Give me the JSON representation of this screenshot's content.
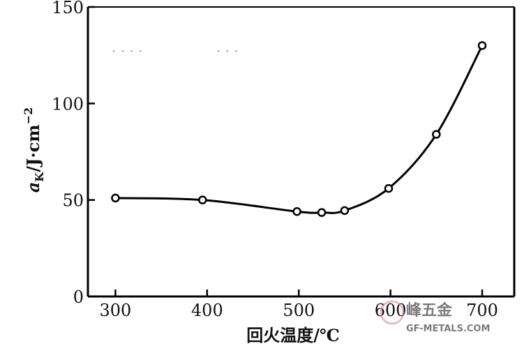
{
  "chart_data": {
    "type": "line",
    "title": "",
    "xlabel": "回火温度/℃",
    "ylabel": "aK/J·cm⁻²",
    "ylabel_parts": {
      "main": "a",
      "sub": "K",
      "unit": "/J·cm",
      "sup": "−2"
    },
    "xlim": [
      270,
      735
    ],
    "ylim": [
      0,
      150
    ],
    "xticks": [
      300,
      400,
      500,
      600,
      700
    ],
    "yticks": [
      0,
      50,
      100,
      150
    ],
    "grid": false,
    "series": [
      {
        "x": [
          300,
          395,
          498,
          525,
          550,
          598,
          650,
          700
        ],
        "y": [
          51,
          50,
          44,
          43.5,
          44.5,
          56,
          84,
          130
        ]
      }
    ]
  },
  "watermark": {
    "cn": "峰五金",
    "en": "GF-METALS.COM"
  },
  "colors": {
    "line": "#000000",
    "marker_fill": "#ffffff",
    "watermark": "#e8b0b0"
  }
}
